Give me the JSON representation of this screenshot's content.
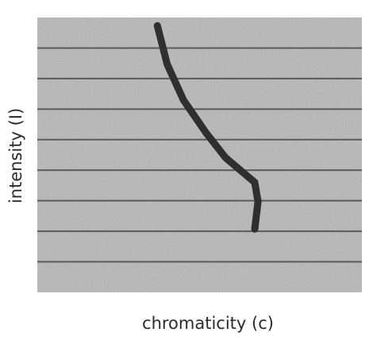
{
  "chart_data": {
    "type": "line",
    "title": "",
    "xlabel": "chromaticity (c)",
    "ylabel": "intensity (I)",
    "grid": "horizontal",
    "series": [
      {
        "values_xy": [
          [
            0.37,
            0.97
          ],
          [
            0.4,
            0.83
          ],
          [
            0.45,
            0.7
          ],
          [
            0.52,
            0.58
          ],
          [
            0.58,
            0.49
          ],
          [
            0.63,
            0.44
          ],
          [
            0.67,
            0.4
          ],
          [
            0.68,
            0.33
          ],
          [
            0.67,
            0.23
          ]
        ]
      }
    ],
    "colors": {
      "background": "#b7b7b7",
      "gridline": "#5a5a5a",
      "trace": "#2f2f2f",
      "text": "#2a2a2a"
    }
  }
}
